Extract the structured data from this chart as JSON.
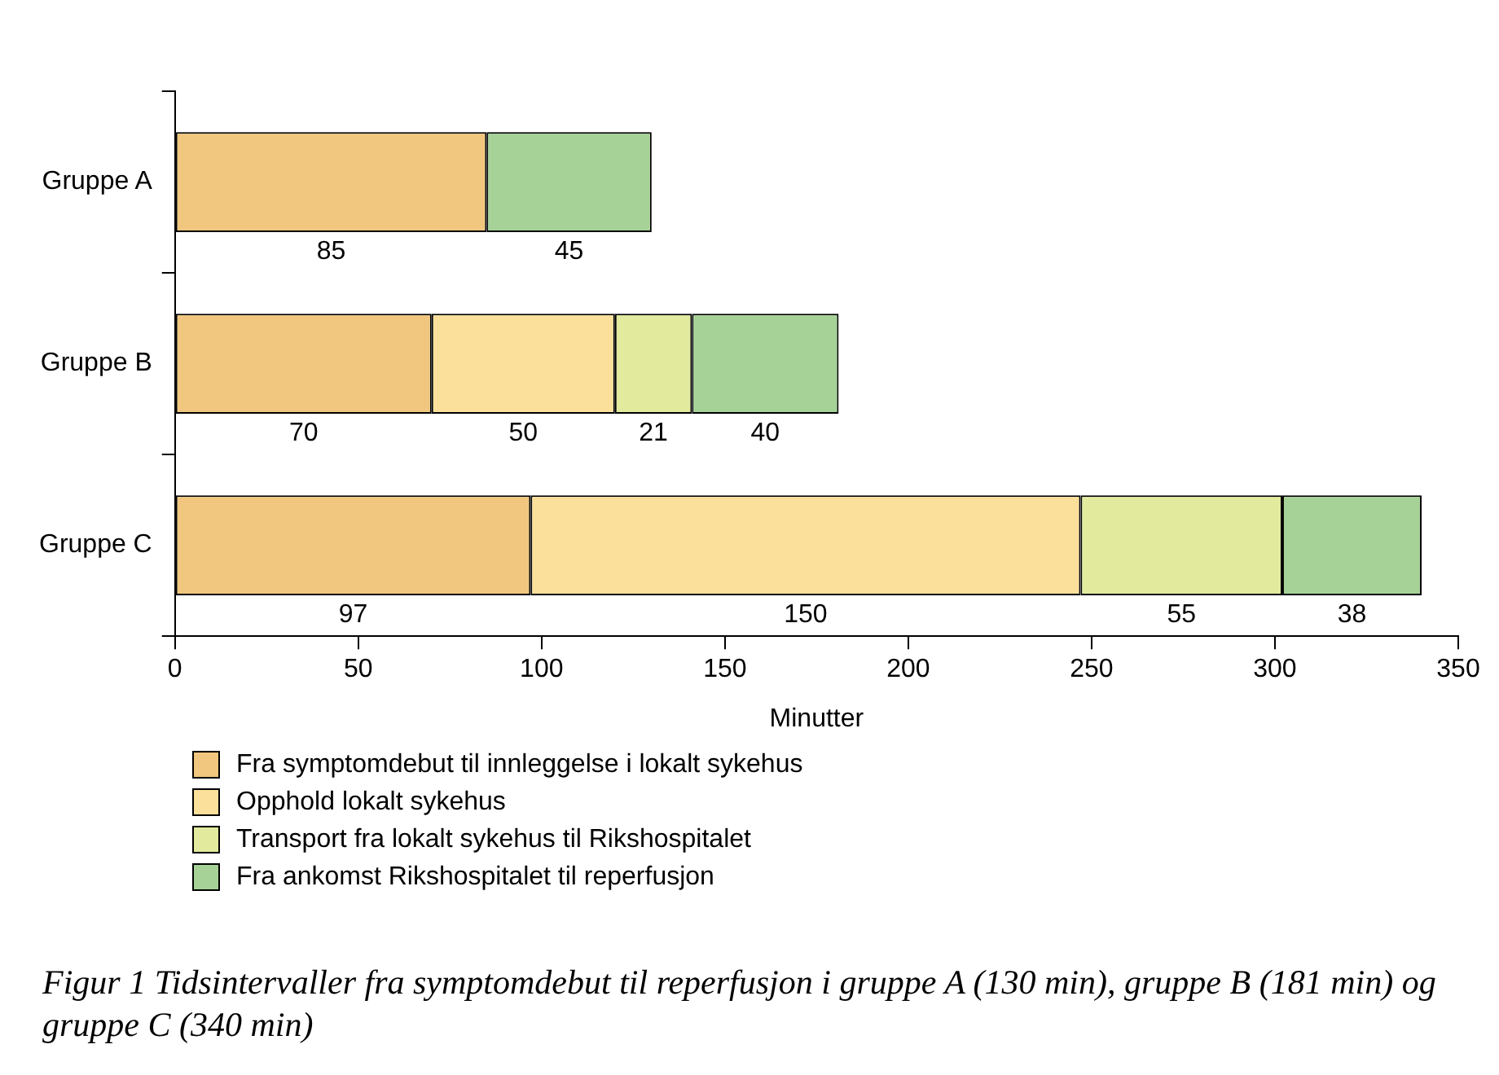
{
  "chart_data": {
    "type": "bar",
    "orientation": "horizontal",
    "stacked": true,
    "data_labels": true,
    "grid": false,
    "legend": "bottom left",
    "categories": [
      "Gruppe A",
      "Gruppe B",
      "Gruppe C"
    ],
    "series": [
      {
        "name": "Fra symptomdebut til innleggelse i lokalt sykehus",
        "color": "#f1c67e",
        "values": [
          85,
          70,
          97
        ]
      },
      {
        "name": "Opphold lokalt sykehus",
        "color": "#fbe09b",
        "values": [
          null,
          50,
          150
        ]
      },
      {
        "name": "Transport fra lokalt sykehus til Rikshospitalet",
        "color": "#e2ea9e",
        "values": [
          null,
          21,
          55
        ]
      },
      {
        "name": "Fra ankomst Rikshospitalet til reperfusjon",
        "color": "#a6d297",
        "values": [
          45,
          40,
          38
        ]
      }
    ],
    "xlabel": "Minutter",
    "xlim": [
      0,
      350
    ],
    "xticks": [
      0,
      50,
      100,
      150,
      200,
      250,
      300,
      350
    ],
    "annotations": [
      "Figur 1    Tidsintervaller fra symptomdebut til reperfusjon i gruppe A (130 min), gruppe B (181 min) og gruppe C (340 min)"
    ]
  }
}
